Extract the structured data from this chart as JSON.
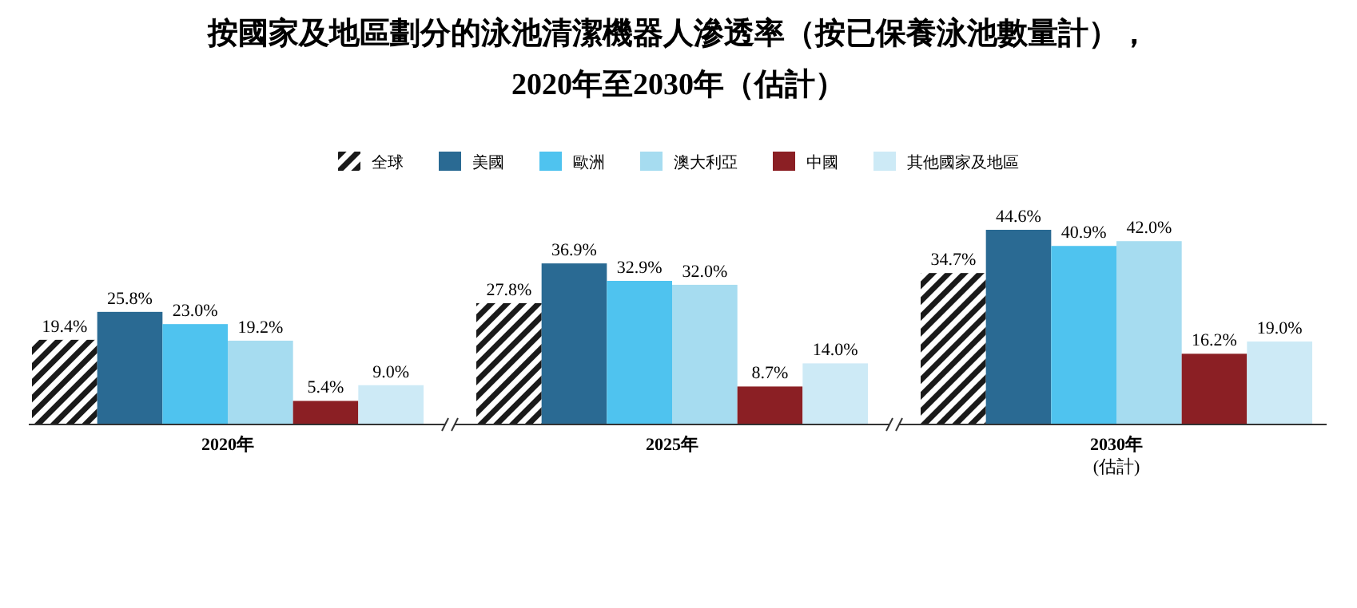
{
  "chart_data": {
    "type": "bar",
    "title": "按國家及地區劃分的泳池清潔機器人滲透率（按已保養泳池數量計），\n2020年至2030年（估計）",
    "categories": [
      "2020年",
      "2025年",
      "2030年\n(估計)"
    ],
    "legend": "top",
    "series": [
      {
        "name": "全球",
        "color": "#1a1a1a",
        "values": [
          19.4,
          27.8,
          34.7
        ],
        "value_labels": [
          "19.4%",
          "27.8%",
          "34.7%"
        ]
      },
      {
        "name": "美國",
        "color": "#2a6a93",
        "values": [
          25.8,
          36.9,
          44.6
        ],
        "value_labels": [
          "25.8%",
          "36.9%",
          "44.6%"
        ]
      },
      {
        "name": "歐洲",
        "color": "#4fc3ef",
        "values": [
          23.0,
          32.9,
          40.9
        ],
        "value_labels": [
          "23.0%",
          "32.9%",
          "40.9%"
        ]
      },
      {
        "name": "澳大利亞",
        "color": "#a6dcf0",
        "values": [
          19.2,
          32.0,
          42.0
        ],
        "value_labels": [
          "19.2%",
          "32.0%",
          "42.0%"
        ]
      },
      {
        "name": "中國",
        "color": "#8b1f24",
        "values": [
          5.4,
          8.7,
          16.2
        ],
        "value_labels": [
          "5.4%",
          "8.7%",
          "16.2%"
        ]
      },
      {
        "name": "其他國家及地區",
        "color": "#cdeaf6",
        "values": [
          9.0,
          14.0,
          19.0
        ],
        "value_labels": [
          "9.0%",
          "14.0%",
          "19.0%"
        ]
      }
    ]
  }
}
